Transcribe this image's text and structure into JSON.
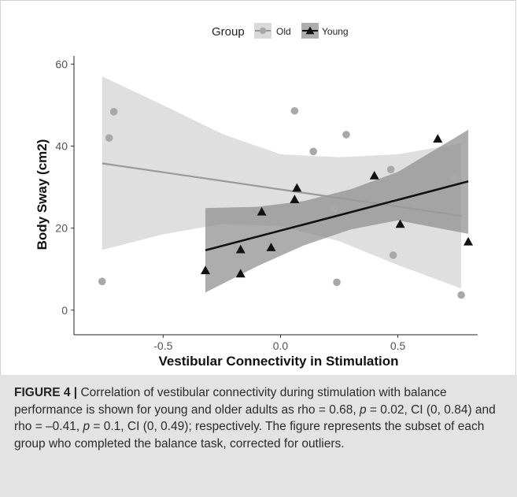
{
  "chart_data": {
    "type": "scatter",
    "legend": {
      "title": "Group",
      "placement": "top"
    },
    "xlabel": "Vestibular Connectivity in Stimulation",
    "ylabel": "Body Sway (cm2)",
    "xlim": [
      -0.88,
      0.84
    ],
    "ylim": [
      -6.0,
      62.0
    ],
    "xticks": [
      -0.5,
      0.0,
      0.5
    ],
    "xtick_labels": [
      "-0.5",
      "0.0",
      "0.5"
    ],
    "yticks": [
      0,
      20,
      40,
      60
    ],
    "ytick_labels": [
      "0",
      "20",
      "40",
      "60"
    ],
    "grid": false,
    "series": [
      {
        "name": "Old",
        "marker": "circle",
        "color": "#a8a8a8",
        "line_color": "#9a9a9a",
        "band_color": "#c9c9c9",
        "points": [
          {
            "x": -0.76,
            "y": 7.0
          },
          {
            "x": -0.73,
            "y": 42.0
          },
          {
            "x": -0.71,
            "y": 48.4
          },
          {
            "x": 0.06,
            "y": 48.6
          },
          {
            "x": 0.14,
            "y": 38.7
          },
          {
            "x": 0.23,
            "y": 24.8
          },
          {
            "x": 0.24,
            "y": 6.8
          },
          {
            "x": 0.28,
            "y": 42.8
          },
          {
            "x": 0.47,
            "y": 34.3
          },
          {
            "x": 0.48,
            "y": 13.4
          },
          {
            "x": 0.74,
            "y": 32.1
          },
          {
            "x": 0.77,
            "y": 3.7
          }
        ],
        "fit": {
          "x": [
            -0.76,
            0.77
          ],
          "y": [
            35.8,
            23.0
          ]
        },
        "ci_band": {
          "x": [
            -0.76,
            -0.5,
            -0.25,
            0.0,
            0.25,
            0.5,
            0.77
          ],
          "upper": [
            57.0,
            50.0,
            43.0,
            38.0,
            37.3,
            38.0,
            40.7
          ],
          "lower": [
            14.7,
            18.5,
            21.0,
            20.5,
            16.8,
            11.0,
            5.3
          ]
        }
      },
      {
        "name": "Young",
        "marker": "triangle",
        "color": "#111111",
        "line_color": "#111111",
        "band_color": "#8a8a8a",
        "points": [
          {
            "x": -0.32,
            "y": 9.7
          },
          {
            "x": -0.17,
            "y": 8.9
          },
          {
            "x": -0.17,
            "y": 14.8
          },
          {
            "x": -0.08,
            "y": 24.0
          },
          {
            "x": -0.04,
            "y": 15.3
          },
          {
            "x": 0.06,
            "y": 27.0
          },
          {
            "x": 0.07,
            "y": 29.8
          },
          {
            "x": 0.4,
            "y": 32.8
          },
          {
            "x": 0.51,
            "y": 21.0
          },
          {
            "x": 0.67,
            "y": 41.8
          },
          {
            "x": 0.8,
            "y": 16.7
          }
        ],
        "fit": {
          "x": [
            -0.32,
            0.8
          ],
          "y": [
            14.6,
            31.4
          ]
        },
        "ci_band": {
          "x": [
            -0.32,
            -0.1,
            0.1,
            0.3,
            0.5,
            0.8
          ],
          "upper": [
            24.9,
            25.2,
            26.6,
            29.5,
            33.7,
            44.0
          ],
          "lower": [
            4.3,
            10.7,
            15.8,
            19.7,
            21.9,
            18.6
          ]
        }
      }
    ]
  },
  "caption": {
    "label": "FIGURE 4 |",
    "segments": [
      {
        "text": " Correlation of vestibular connectivity during stimulation with balance performance is shown for young and older adults as rho = 0.68, ",
        "italic": false
      },
      {
        "text": "p",
        "italic": true
      },
      {
        "text": " = 0.02, CI (0, 0.84) and rho = –0.41, ",
        "italic": false
      },
      {
        "text": "p",
        "italic": true
      },
      {
        "text": " = 0.1, CI (0, 0.49); respectively. The figure represents the subset of each group who completed the balance task, corrected for outliers.",
        "italic": false
      }
    ]
  }
}
